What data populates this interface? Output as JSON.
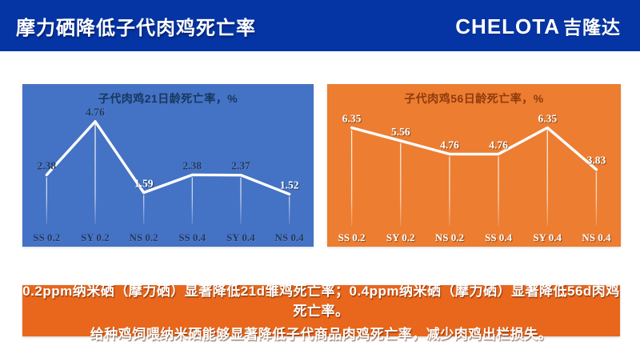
{
  "header": {
    "title": "摩力硒降低子代肉鸡死亡率",
    "logo_latin": "CHELOTA",
    "logo_cjk": "吉隆达",
    "bg_color": "#0534A4"
  },
  "chart_data": [
    {
      "type": "line",
      "title": "子代肉鸡21日龄死亡率，%",
      "categories": [
        "SS 0.2",
        "SY 0.2",
        "NS 0.2",
        "SS 0.4",
        "SY 0.4",
        "NS 0.4"
      ],
      "values": [
        2.38,
        4.76,
        1.59,
        2.38,
        2.37,
        1.52
      ],
      "value_labels": [
        "2.38",
        "4.76",
        "1.59",
        "2.38",
        "2.37",
        "1.52"
      ],
      "label_colors": [
        "#1F3962",
        "#1F3962",
        "#FFFFFF",
        "#1F3962",
        "#1F3962",
        "#FFFFFF"
      ],
      "ylim": [
        0,
        5
      ],
      "grid": false,
      "legend": "none",
      "bg_color": "#4472C4",
      "title_color": "#17375E",
      "tick_color": "#1F3962",
      "line_color": "#FFFFFF"
    },
    {
      "type": "line",
      "title": "子代肉鸡56日龄死亡率，%",
      "categories": [
        "SS 0.2",
        "SY 0.2",
        "NS 0.2",
        "SS 0.4",
        "SY 0.4",
        "NS 0.4"
      ],
      "values": [
        6.35,
        5.56,
        4.76,
        4.76,
        6.35,
        3.83
      ],
      "value_labels": [
        "6.35",
        "5.56",
        "4.76",
        "4.76",
        "6.35",
        "3.83"
      ],
      "label_colors": [
        "#FFFFFF",
        "#FFFFFF",
        "#FFFFFF",
        "#FFFFFF",
        "#FFFFFF",
        "#FFFFFF"
      ],
      "ylim": [
        0,
        7
      ],
      "grid": false,
      "legend": "none",
      "bg_color": "#ED7D31",
      "title_color": "#8F3A0D",
      "tick_color": "#FFFFFF",
      "line_color": "#FFFFFF"
    }
  ],
  "banner": {
    "bg_color": "#E8671C",
    "lines": [
      "0.2ppm纳米硒（摩力硒）显著降低21d雏鸡死亡率；0.4ppm纳米硒（摩力硒）显著降低56d肉鸡死亡率。",
      "给种鸡饲喂纳米硒能够显著降低子代商品肉鸡死亡率，减少肉鸡出栏损失。"
    ]
  }
}
